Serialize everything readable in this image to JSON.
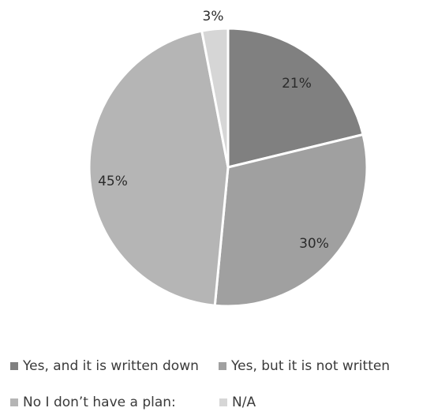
{
  "chart_data": {
    "type": "pie",
    "title": "",
    "slices": [
      {
        "label": "Yes, and it is written down",
        "value": 21,
        "value_label": "21%",
        "color": "#808080"
      },
      {
        "label": "Yes, but it is not written",
        "value": 30,
        "value_label": "30%",
        "color": "#a0a0a0"
      },
      {
        "label": "No I don’t have a plan:",
        "value": 45,
        "value_label": "45%",
        "color": "#b5b5b5"
      },
      {
        "label": "N/A",
        "value": 3,
        "value_label": "3%",
        "color": "#d6d6d6"
      }
    ],
    "legend_position": "bottom",
    "start_angle": "top",
    "direction": "clockwise"
  }
}
